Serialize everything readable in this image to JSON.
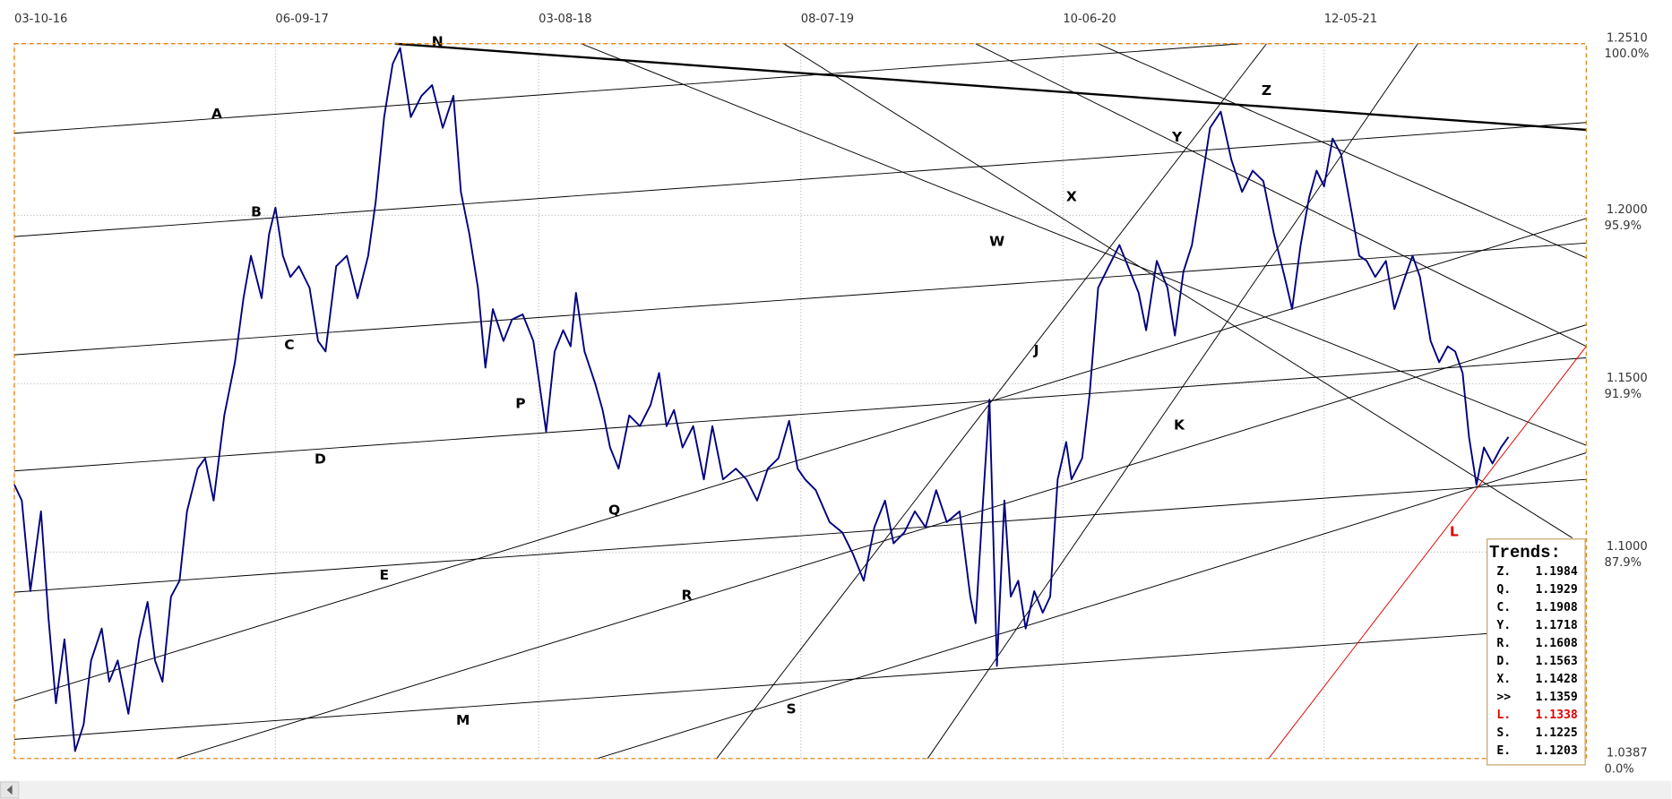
{
  "chart_data": {
    "type": "line",
    "color": "#000080",
    "xlim": [
      0,
      1475
    ],
    "ylim": [
      1.0387,
      1.251
    ],
    "grid": true,
    "xticks": [
      {
        "value": 0,
        "label": "03-10-16"
      },
      {
        "value": 245,
        "label": "06-09-17"
      },
      {
        "value": 492,
        "label": "03-08-18"
      },
      {
        "value": 738,
        "label": "08-07-19"
      },
      {
        "value": 984,
        "label": "10-06-20"
      },
      {
        "value": 1229,
        "label": "12-05-21"
      }
    ],
    "yticks": [
      {
        "value": 1.251,
        "label": "1.2510"
      },
      {
        "value": 1.2,
        "label": "1.2000"
      },
      {
        "value": 1.15,
        "label": "1.1500"
      },
      {
        "value": 1.1,
        "label": "1.1000"
      },
      {
        "value": 1.0387,
        "label": "1.0387"
      }
    ],
    "ytick_percents": [
      "100.0%",
      "95.9%",
      "91.9%",
      "87.9%",
      "0.0%"
    ],
    "x": [
      0,
      7,
      15,
      25,
      32,
      39,
      47,
      57,
      65,
      72,
      82,
      89,
      97,
      107,
      117,
      125,
      132,
      139,
      147,
      155,
      162,
      172,
      179,
      187,
      197,
      207,
      215,
      222,
      232,
      239,
      245,
      252,
      259,
      267,
      277,
      285,
      292,
      302,
      312,
      322,
      332,
      339,
      347,
      355,
      362,
      372,
      382,
      392,
      402,
      412,
      419,
      427,
      435,
      442,
      449,
      459,
      467,
      477,
      487,
      499,
      507,
      515,
      522,
      527,
      535,
      545,
      552,
      559,
      567,
      577,
      587,
      597,
      605,
      612,
      619,
      627,
      637,
      647,
      655,
      665,
      677,
      687,
      697,
      707,
      717,
      727,
      735,
      742,
      752,
      765,
      777,
      787,
      797,
      807,
      817,
      825,
      835,
      845,
      855,
      865,
      875,
      887,
      897,
      902,
      909,
      915,
      922,
      929,
      935,
      942,
      949,
      957,
      965,
      972,
      979,
      987,
      992,
      1002,
      1009,
      1017,
      1027,
      1037,
      1047,
      1055,
      1062,
      1072,
      1082,
      1089,
      1097,
      1105,
      1112,
      1122,
      1132,
      1142,
      1152,
      1162,
      1172,
      1182,
      1192,
      1199,
      1207,
      1215,
      1222,
      1229,
      1237,
      1245,
      1255,
      1262,
      1269,
      1277,
      1287,
      1295,
      1305,
      1312,
      1319,
      1329,
      1337,
      1345,
      1352,
      1359,
      1365,
      1372,
      1379,
      1387,
      1395,
      1402
    ],
    "values": [
      1.12,
      1.1153,
      1.0884,
      1.1121,
      1.0805,
      1.0551,
      1.0741,
      1.0409,
      1.0488,
      1.0678,
      1.0773,
      1.0615,
      1.0678,
      1.052,
      1.0741,
      1.0852,
      1.0678,
      1.0615,
      1.0868,
      1.0915,
      1.1121,
      1.1248,
      1.1279,
      1.1153,
      1.1406,
      1.1564,
      1.1754,
      1.188,
      1.1754,
      1.1944,
      1.2023,
      1.188,
      1.1817,
      1.1849,
      1.1785,
      1.1627,
      1.1596,
      1.1849,
      1.188,
      1.1754,
      1.188,
      1.2039,
      1.2292,
      1.245,
      1.2497,
      1.2292,
      1.2355,
      1.2387,
      1.226,
      1.2355,
      1.207,
      1.1944,
      1.1785,
      1.1548,
      1.1722,
      1.1627,
      1.1691,
      1.1706,
      1.1627,
      1.1358,
      1.1596,
      1.1659,
      1.1611,
      1.177,
      1.1596,
      1.1501,
      1.1422,
      1.1311,
      1.1248,
      1.1406,
      1.1374,
      1.1437,
      1.1532,
      1.1374,
      1.1422,
      1.1311,
      1.1374,
      1.1216,
      1.1374,
      1.1216,
      1.1248,
      1.1216,
      1.1153,
      1.1248,
      1.1279,
      1.139,
      1.1248,
      1.1216,
      1.1184,
      1.1089,
      1.1058,
      1.0994,
      1.0915,
      1.1074,
      1.1153,
      1.1026,
      1.1058,
      1.1121,
      1.1074,
      1.1184,
      1.1089,
      1.1121,
      1.0868,
      1.0789,
      1.1153,
      1.1453,
      1.0662,
      1.1153,
      1.0868,
      1.0915,
      1.0773,
      1.0884,
      1.082,
      1.0868,
      1.1216,
      1.1327,
      1.1216,
      1.1279,
      1.1469,
      1.1785,
      1.1849,
      1.1912,
      1.1833,
      1.177,
      1.1659,
      1.1865,
      1.1785,
      1.1643,
      1.1833,
      1.1912,
      1.2054,
      1.226,
      1.2308,
      1.2165,
      1.207,
      1.2133,
      1.2102,
      1.1944,
      1.1817,
      1.1722,
      1.1912,
      1.2054,
      1.2133,
      1.2086,
      1.2228,
      1.2181,
      1.2007,
      1.188,
      1.1865,
      1.1817,
      1.1865,
      1.1722,
      1.1817,
      1.188,
      1.1817,
      1.1627,
      1.1564,
      1.1611,
      1.1596,
      1.1532,
      1.1342,
      1.12,
      1.1311,
      1.1263,
      1.1311,
      1.1342
    ],
    "trendline_color": "#000000",
    "trendlines": [
      {
        "points": [
          [
            357,
            1.251
          ],
          [
            1475,
            1.2254
          ]
        ],
        "style": "bold"
      },
      {
        "points": [
          [
            0,
            1.2244
          ],
          [
            1152,
            1.251
          ]
        ]
      },
      {
        "points": [
          [
            0,
            1.1937
          ],
          [
            1475,
            1.2276
          ]
        ]
      },
      {
        "points": [
          [
            0,
            1.1586
          ],
          [
            1475,
            1.1918
          ]
        ]
      },
      {
        "points": [
          [
            0,
            1.1241
          ],
          [
            1475,
            1.1577
          ]
        ]
      },
      {
        "points": [
          [
            0,
            1.0881
          ],
          [
            1475,
            1.1216
          ]
        ]
      },
      {
        "points": [
          [
            0,
            1.0444
          ],
          [
            1475,
            1.0779
          ]
        ]
      },
      {
        "points": [
          [
            0,
            1.0558
          ],
          [
            1475,
            1.1991
          ]
        ]
      },
      {
        "points": [
          [
            152,
            1.0387
          ],
          [
            1475,
            1.1675
          ]
        ]
      },
      {
        "points": [
          [
            547,
            1.0387
          ],
          [
            1475,
            1.1295
          ]
        ]
      },
      {
        "points": [
          [
            659,
            1.0387
          ],
          [
            1175,
            1.251
          ]
        ]
      },
      {
        "points": [
          [
            857,
            1.0387
          ],
          [
            1317,
            1.251
          ]
        ]
      },
      {
        "points": [
          [
            532,
            1.251
          ],
          [
            1475,
            1.1317
          ]
        ]
      },
      {
        "points": [
          [
            722,
            1.251
          ],
          [
            1462,
            1.1042
          ]
        ]
      },
      {
        "points": [
          [
            902,
            1.251
          ],
          [
            1475,
            1.1611
          ]
        ]
      },
      {
        "points": [
          [
            1017,
            1.251
          ],
          [
            1475,
            1.1874
          ]
        ]
      },
      {
        "points": [
          [
            1177,
            1.0387
          ],
          [
            1475,
            1.1611
          ]
        ],
        "color": "#e00000"
      }
    ],
    "annotations": [
      {
        "text": "A",
        "x": 190,
        "y": 1.2304
      },
      {
        "text": "B",
        "x": 227,
        "y": 1.2013
      },
      {
        "text": "C",
        "x": 258,
        "y": 1.1618
      },
      {
        "text": "D",
        "x": 287,
        "y": 1.1279
      },
      {
        "text": "E",
        "x": 347,
        "y": 1.0934
      },
      {
        "text": "M",
        "x": 421,
        "y": 1.0504
      },
      {
        "text": "N",
        "x": 397,
        "y": 1.2519
      },
      {
        "text": "P",
        "x": 475,
        "y": 1.1444
      },
      {
        "text": "Q",
        "x": 563,
        "y": 1.1127
      },
      {
        "text": "R",
        "x": 631,
        "y": 1.0874
      },
      {
        "text": "S",
        "x": 729,
        "y": 1.0536
      },
      {
        "text": "J",
        "x": 959,
        "y": 1.1602
      },
      {
        "text": "K",
        "x": 1093,
        "y": 1.138
      },
      {
        "text": "W",
        "x": 922,
        "y": 1.1925
      },
      {
        "text": "X",
        "x": 992,
        "y": 1.2058
      },
      {
        "text": "Y",
        "x": 1091,
        "y": 1.2235
      },
      {
        "text": "Z",
        "x": 1175,
        "y": 1.2374
      },
      {
        "text": "L",
        "x": 1351,
        "y": 1.1064,
        "color": "#e00000"
      }
    ],
    "trends_box": {
      "title": "Trends:",
      "rows": [
        {
          "label": "Z.",
          "value": 1.1984
        },
        {
          "label": "Q.",
          "value": 1.1929
        },
        {
          "label": "C.",
          "value": 1.1908
        },
        {
          "label": "Y.",
          "value": 1.1718
        },
        {
          "label": "R.",
          "value": 1.1608
        },
        {
          "label": "D.",
          "value": 1.1563
        },
        {
          "label": "X.",
          "value": 1.1428
        },
        {
          "label": ">>",
          "value": 1.1359
        },
        {
          "label": "L.",
          "value": 1.1338,
          "color": "#e00000"
        },
        {
          "label": "S.",
          "value": 1.1225
        },
        {
          "label": "E.",
          "value": 1.1203
        }
      ]
    }
  }
}
